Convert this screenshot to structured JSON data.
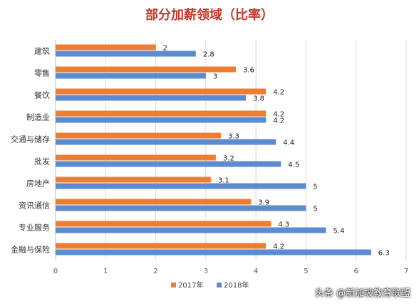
{
  "chart_data": {
    "type": "bar",
    "orientation": "horizontal",
    "title": "部分加薪领域（比率）",
    "categories": [
      "建筑",
      "零售",
      "餐饮",
      "制造业",
      "交通与储存",
      "批发",
      "房地产",
      "资讯通信",
      "专业服务",
      "金融与保险"
    ],
    "series": [
      {
        "name": "2017年",
        "color": "#ED7D31",
        "values": [
          2,
          3.6,
          4.2,
          4.2,
          3.3,
          3.2,
          3.1,
          3.9,
          4.3,
          4.2
        ]
      },
      {
        "name": "2018年",
        "color": "#5B8BD0",
        "values": [
          2.8,
          3,
          3.8,
          4.2,
          4.4,
          4.5,
          5,
          5,
          5.4,
          6.3
        ]
      }
    ],
    "xlim": [
      0,
      7
    ],
    "xticks": [
      0,
      1,
      2,
      3,
      4,
      5,
      6,
      7
    ],
    "grid": true,
    "legend_position": "bottom"
  },
  "watermark": "头条 @新加坡教育联盟"
}
